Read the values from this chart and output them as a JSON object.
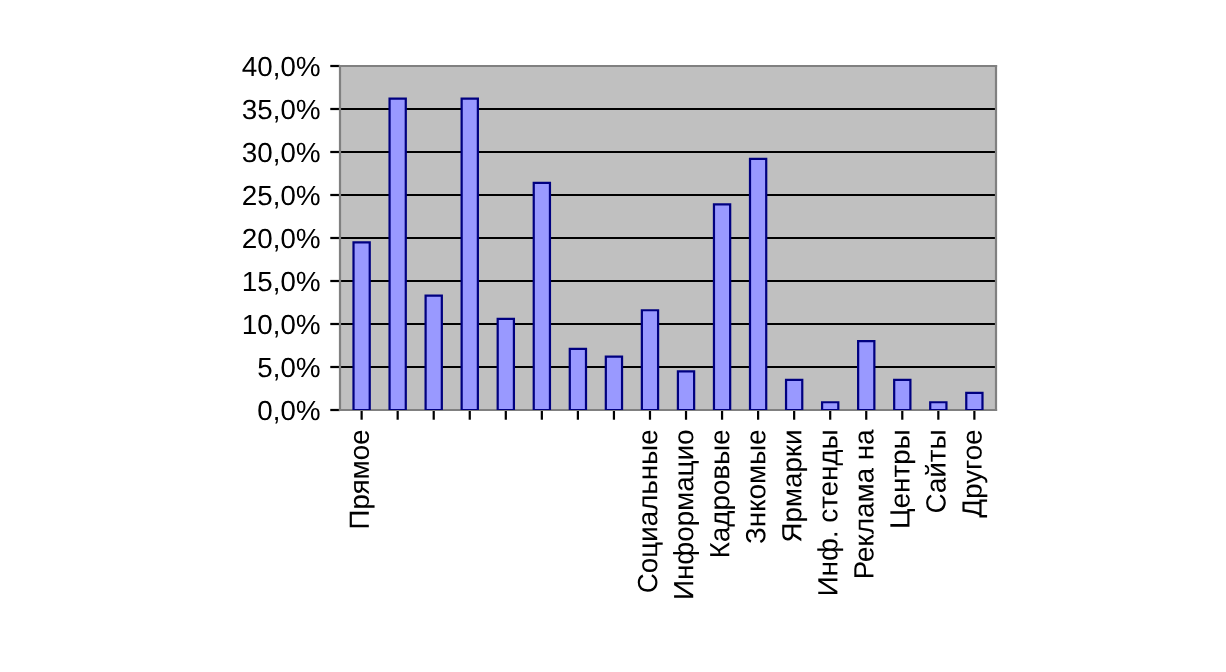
{
  "chart_data": {
    "type": "bar",
    "categories": [
      "Прямое",
      null,
      null,
      null,
      null,
      null,
      null,
      null,
      "Социальные",
      "Информацио",
      "Кадровые",
      "Знкомые",
      "Ярмарки",
      "Инф. стенды",
      "Реклама на",
      "Центры",
      "Сайты",
      "Другое"
    ],
    "values": [
      19.5,
      36.2,
      13.3,
      36.2,
      10.6,
      26.4,
      7.1,
      6.2,
      11.6,
      4.5,
      23.9,
      29.2,
      3.5,
      0.9,
      8.0,
      3.5,
      0.9,
      2.0
    ],
    "color": "#9999ff",
    "ylim": [
      0,
      40
    ],
    "yticks": [
      {
        "value": 0,
        "label": "0,0%"
      },
      {
        "value": 5,
        "label": "5,0%"
      },
      {
        "value": 10,
        "label": "10,0%"
      },
      {
        "value": 15,
        "label": "15,0%"
      },
      {
        "value": 20,
        "label": "20,0%"
      },
      {
        "value": 25,
        "label": "25,0%"
      },
      {
        "value": 30,
        "label": "30,0%"
      },
      {
        "value": 35,
        "label": "35,0%"
      },
      {
        "value": 40,
        "label": "40,0%"
      }
    ],
    "grid": "y"
  }
}
